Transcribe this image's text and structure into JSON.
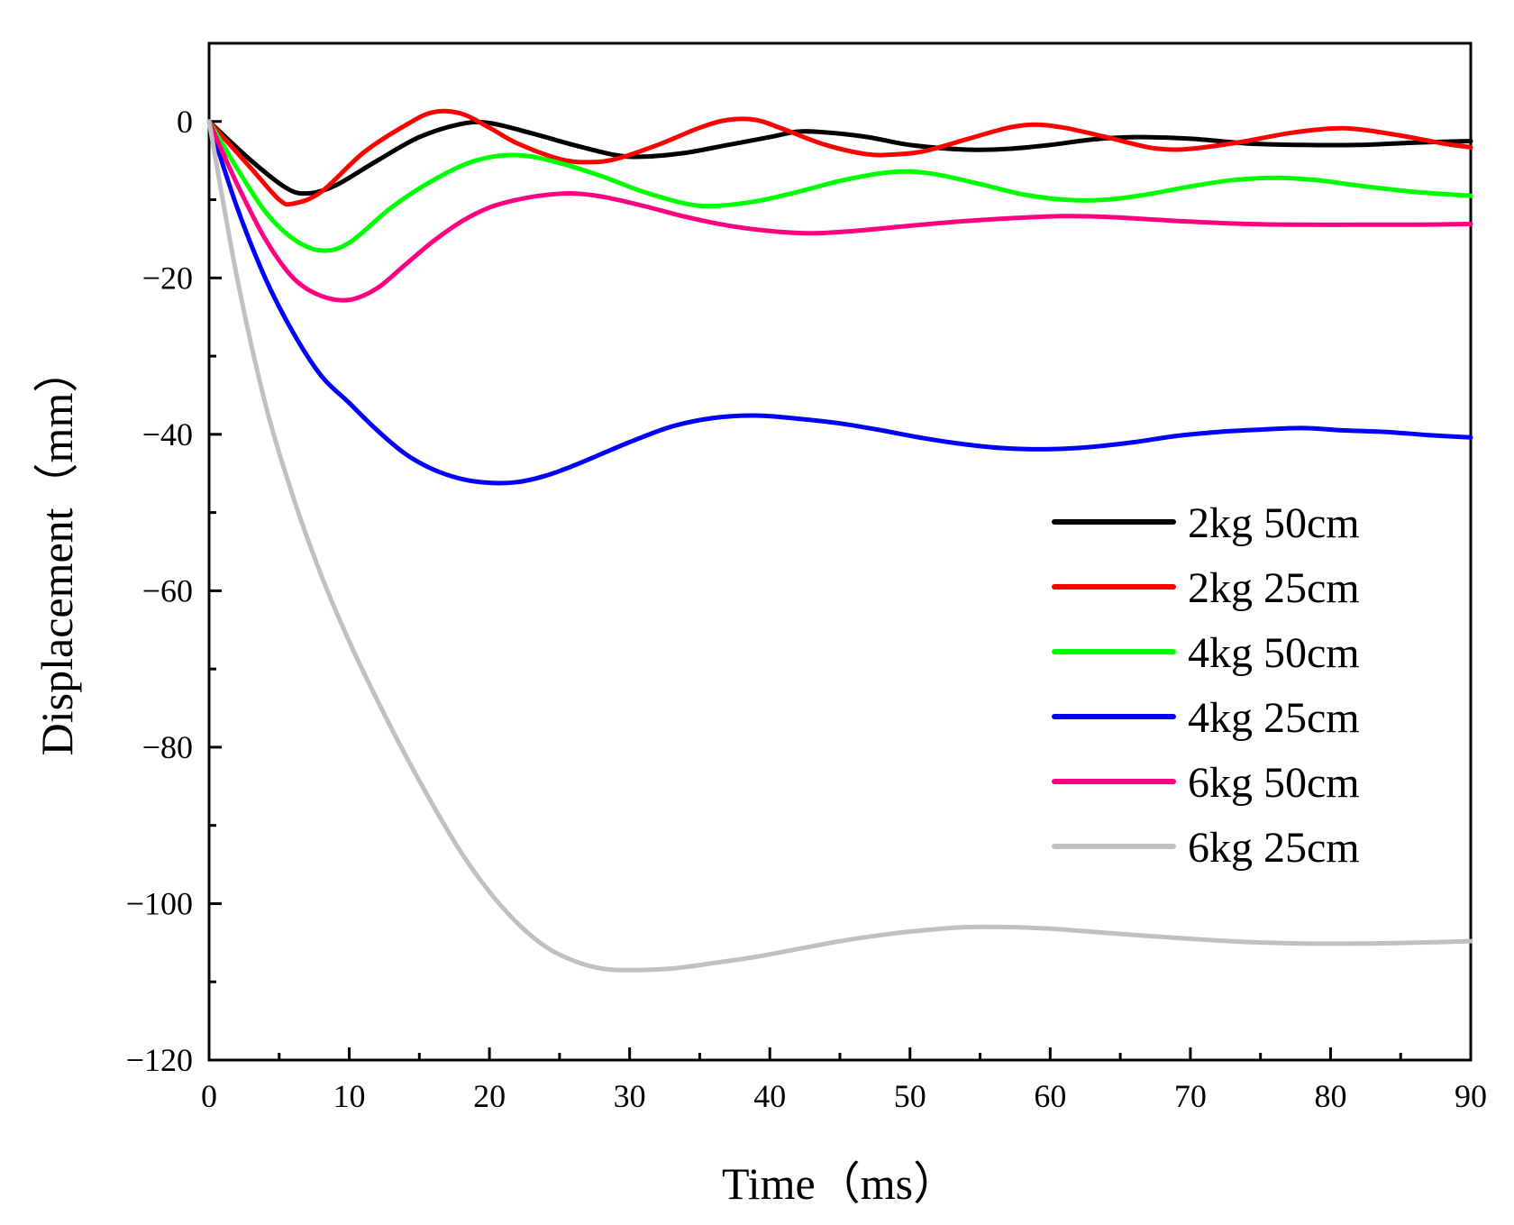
{
  "chart_data": {
    "type": "line",
    "title": "",
    "xlabel": "Time（ms）",
    "ylabel": "Displacement（mm）",
    "xlim": [
      0,
      90
    ],
    "ylim": [
      -120,
      10
    ],
    "xticks": [
      0,
      10,
      20,
      30,
      40,
      50,
      60,
      70,
      80,
      90
    ],
    "yticks": [
      0,
      -20,
      -40,
      -60,
      -80,
      -100,
      -120
    ],
    "xtick_labels": [
      "0",
      "10",
      "20",
      "30",
      "40",
      "50",
      "60",
      "70",
      "80",
      "90"
    ],
    "ytick_labels": [
      "0",
      "−20",
      "−40",
      "−60",
      "−80",
      "−100",
      "−120"
    ],
    "legend_position": "center-right",
    "grid": false,
    "series": [
      {
        "name": "2kg 50cm",
        "color": "#000000",
        "points": [
          [
            0,
            0
          ],
          [
            3,
            -5
          ],
          [
            5.5,
            -8.5
          ],
          [
            7,
            -9.2
          ],
          [
            9,
            -8.2
          ],
          [
            12,
            -5
          ],
          [
            15,
            -2
          ],
          [
            18,
            -0.3
          ],
          [
            20,
            -0.2
          ],
          [
            23,
            -1.5
          ],
          [
            26,
            -3
          ],
          [
            29,
            -4.3
          ],
          [
            31,
            -4.5
          ],
          [
            34,
            -4
          ],
          [
            37,
            -3
          ],
          [
            40,
            -2
          ],
          [
            42,
            -1.3
          ],
          [
            44,
            -1.4
          ],
          [
            47,
            -2
          ],
          [
            50,
            -3
          ],
          [
            54,
            -3.6
          ],
          [
            57,
            -3.5
          ],
          [
            60,
            -3
          ],
          [
            63,
            -2.3
          ],
          [
            66,
            -2
          ],
          [
            70,
            -2.2
          ],
          [
            74,
            -2.8
          ],
          [
            78,
            -3
          ],
          [
            82,
            -3
          ],
          [
            86,
            -2.7
          ],
          [
            90,
            -2.5
          ]
        ]
      },
      {
        "name": "2kg 25cm",
        "color": "#ff0000",
        "points": [
          [
            0,
            0
          ],
          [
            3,
            -6
          ],
          [
            5,
            -10
          ],
          [
            6,
            -10.5
          ],
          [
            8,
            -9
          ],
          [
            11,
            -4
          ],
          [
            14,
            -0.5
          ],
          [
            16,
            1.2
          ],
          [
            18,
            1
          ],
          [
            20,
            -0.8
          ],
          [
            22,
            -2.8
          ],
          [
            25,
            -4.8
          ],
          [
            27,
            -5.2
          ],
          [
            29,
            -4.8
          ],
          [
            32,
            -3
          ],
          [
            35,
            -0.8
          ],
          [
            37,
            0.2
          ],
          [
            39,
            0.2
          ],
          [
            41,
            -1
          ],
          [
            44,
            -3
          ],
          [
            47,
            -4.2
          ],
          [
            49,
            -4.2
          ],
          [
            51,
            -3.8
          ],
          [
            54,
            -2.3
          ],
          [
            57,
            -0.8
          ],
          [
            59,
            -0.4
          ],
          [
            61,
            -0.8
          ],
          [
            64,
            -2
          ],
          [
            67,
            -3.3
          ],
          [
            69,
            -3.6
          ],
          [
            71,
            -3.3
          ],
          [
            74,
            -2.5
          ],
          [
            77,
            -1.5
          ],
          [
            80,
            -0.9
          ],
          [
            82,
            -1
          ],
          [
            85,
            -1.8
          ],
          [
            88,
            -2.8
          ],
          [
            90,
            -3.3
          ]
        ]
      },
      {
        "name": "4kg 50cm",
        "color": "#00ff00",
        "points": [
          [
            0,
            0
          ],
          [
            2,
            -6
          ],
          [
            4,
            -11.5
          ],
          [
            6,
            -15
          ],
          [
            8,
            -16.5
          ],
          [
            10,
            -15.5
          ],
          [
            13,
            -11
          ],
          [
            16,
            -7.5
          ],
          [
            19,
            -5
          ],
          [
            22,
            -4.3
          ],
          [
            25,
            -5.3
          ],
          [
            28,
            -7
          ],
          [
            31,
            -9
          ],
          [
            34,
            -10.5
          ],
          [
            36,
            -10.8
          ],
          [
            39,
            -10.2
          ],
          [
            42,
            -9
          ],
          [
            45,
            -7.6
          ],
          [
            48,
            -6.6
          ],
          [
            50,
            -6.4
          ],
          [
            52,
            -6.8
          ],
          [
            55,
            -8
          ],
          [
            58,
            -9.3
          ],
          [
            61,
            -10
          ],
          [
            64,
            -10
          ],
          [
            67,
            -9.3
          ],
          [
            70,
            -8.3
          ],
          [
            73,
            -7.5
          ],
          [
            76,
            -7.2
          ],
          [
            79,
            -7.5
          ],
          [
            82,
            -8.2
          ],
          [
            86,
            -9
          ],
          [
            90,
            -9.5
          ]
        ]
      },
      {
        "name": "4kg 25cm",
        "color": "#0000ff",
        "points": [
          [
            0,
            0
          ],
          [
            2,
            -11
          ],
          [
            4,
            -20
          ],
          [
            6,
            -27
          ],
          [
            8,
            -32.5
          ],
          [
            10,
            -36
          ],
          [
            12,
            -39.5
          ],
          [
            14,
            -42.5
          ],
          [
            16,
            -44.5
          ],
          [
            18,
            -45.7
          ],
          [
            20,
            -46.2
          ],
          [
            22,
            -46.1
          ],
          [
            24,
            -45.3
          ],
          [
            26,
            -44
          ],
          [
            28,
            -42.5
          ],
          [
            30,
            -41
          ],
          [
            33,
            -39
          ],
          [
            36,
            -37.9
          ],
          [
            39,
            -37.6
          ],
          [
            42,
            -38
          ],
          [
            45,
            -38.6
          ],
          [
            48,
            -39.5
          ],
          [
            51,
            -40.5
          ],
          [
            54,
            -41.3
          ],
          [
            57,
            -41.8
          ],
          [
            60,
            -41.9
          ],
          [
            63,
            -41.6
          ],
          [
            66,
            -41
          ],
          [
            69,
            -40.2
          ],
          [
            72,
            -39.7
          ],
          [
            75,
            -39.4
          ],
          [
            78,
            -39.2
          ],
          [
            81,
            -39.5
          ],
          [
            84,
            -39.7
          ],
          [
            87,
            -40.1
          ],
          [
            90,
            -40.4
          ]
        ]
      },
      {
        "name": "6kg 50cm",
        "color": "#ff0080",
        "points": [
          [
            0,
            0
          ],
          [
            2,
            -8
          ],
          [
            4,
            -15
          ],
          [
            6,
            -20
          ],
          [
            8,
            -22.3
          ],
          [
            10,
            -22.8
          ],
          [
            12,
            -21.3
          ],
          [
            14,
            -18.3
          ],
          [
            16,
            -15.3
          ],
          [
            18,
            -12.8
          ],
          [
            20,
            -11
          ],
          [
            22,
            -10
          ],
          [
            24,
            -9.4
          ],
          [
            26,
            -9.2
          ],
          [
            28,
            -9.6
          ],
          [
            31,
            -10.8
          ],
          [
            34,
            -12.2
          ],
          [
            37,
            -13.3
          ],
          [
            40,
            -14
          ],
          [
            43,
            -14.3
          ],
          [
            46,
            -14
          ],
          [
            49,
            -13.5
          ],
          [
            52,
            -13
          ],
          [
            55,
            -12.6
          ],
          [
            58,
            -12.3
          ],
          [
            61,
            -12.1
          ],
          [
            64,
            -12.2
          ],
          [
            67,
            -12.5
          ],
          [
            70,
            -12.8
          ],
          [
            74,
            -13.1
          ],
          [
            78,
            -13.2
          ],
          [
            82,
            -13.2
          ],
          [
            86,
            -13.2
          ],
          [
            90,
            -13.1
          ]
        ]
      },
      {
        "name": "6kg 25cm",
        "color": "#c0c0c0",
        "points": [
          [
            0,
            0
          ],
          [
            2,
            -20
          ],
          [
            4,
            -36
          ],
          [
            6,
            -48
          ],
          [
            8,
            -58
          ],
          [
            10,
            -66.5
          ],
          [
            12,
            -74
          ],
          [
            14,
            -81
          ],
          [
            16,
            -87.5
          ],
          [
            18,
            -93.5
          ],
          [
            20,
            -98.5
          ],
          [
            22,
            -102.5
          ],
          [
            24,
            -105.5
          ],
          [
            26,
            -107.3
          ],
          [
            28,
            -108.3
          ],
          [
            30,
            -108.5
          ],
          [
            33,
            -108.3
          ],
          [
            36,
            -107.6
          ],
          [
            39,
            -106.8
          ],
          [
            42,
            -105.8
          ],
          [
            45,
            -104.8
          ],
          [
            48,
            -104
          ],
          [
            51,
            -103.4
          ],
          [
            54,
            -103
          ],
          [
            57,
            -103
          ],
          [
            60,
            -103.2
          ],
          [
            63,
            -103.6
          ],
          [
            66,
            -104
          ],
          [
            70,
            -104.5
          ],
          [
            74,
            -104.9
          ],
          [
            78,
            -105.1
          ],
          [
            82,
            -105.1
          ],
          [
            86,
            -105
          ],
          [
            90,
            -104.8
          ]
        ]
      }
    ]
  }
}
